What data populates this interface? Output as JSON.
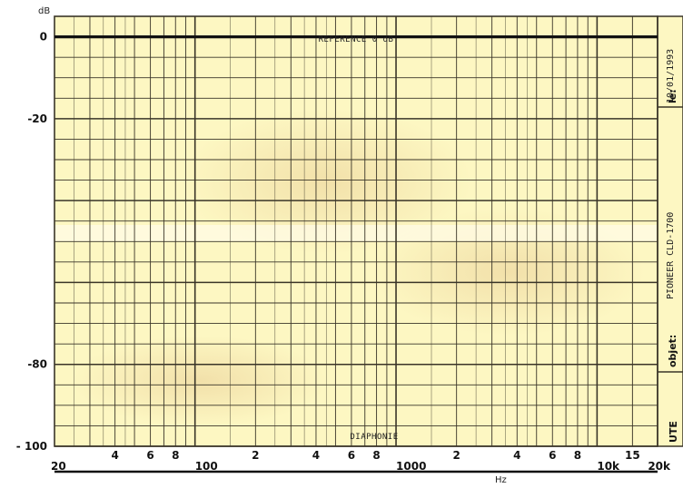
{
  "chart_data": {
    "type": "line",
    "title": "",
    "xlabel": "Hz",
    "ylabel": "dB",
    "x_scale": "log",
    "xlim": [
      20,
      20000
    ],
    "ylim": [
      -100,
      5
    ],
    "y_ticks": [
      {
        "value": 0,
        "label": "0"
      },
      {
        "value": -20,
        "label": "-20"
      },
      {
        "value": -80,
        "label": "-80"
      },
      {
        "value": -100,
        "label": "- 100"
      }
    ],
    "x_ticks": [
      {
        "value": 20,
        "label": "20"
      },
      {
        "value": 40,
        "label": "4"
      },
      {
        "value": 60,
        "label": "6"
      },
      {
        "value": 80,
        "label": "8"
      },
      {
        "value": 100,
        "label": "100"
      },
      {
        "value": 200,
        "label": "2"
      },
      {
        "value": 400,
        "label": "4"
      },
      {
        "value": 600,
        "label": "6"
      },
      {
        "value": 800,
        "label": "8"
      },
      {
        "value": 1000,
        "label": "1000"
      },
      {
        "value": 2000,
        "label": "2"
      },
      {
        "value": 4000,
        "label": "4"
      },
      {
        "value": 6000,
        "label": "6"
      },
      {
        "value": 8000,
        "label": "8"
      },
      {
        "value": 10000,
        "label": "10k"
      },
      {
        "value": 15000,
        "label": "15"
      },
      {
        "value": 20000,
        "label": "20k"
      }
    ],
    "series": [
      {
        "x": [
          20,
          20000
        ],
        "y": [
          0,
          0
        ]
      }
    ],
    "annotations": {
      "reference": "REFERENCE 0 dB",
      "bottom": "DIAPHONIE"
    },
    "grid": true,
    "colors": {
      "paper": "#fdf7c2",
      "grid": "#3a3528",
      "trace": "#111111"
    }
  },
  "side_panel": {
    "date_label": "le:",
    "date_value": "10/01/1993",
    "object_name": "PIONEER CLD-1700",
    "object_label": "objet:",
    "logo": "UTE"
  }
}
